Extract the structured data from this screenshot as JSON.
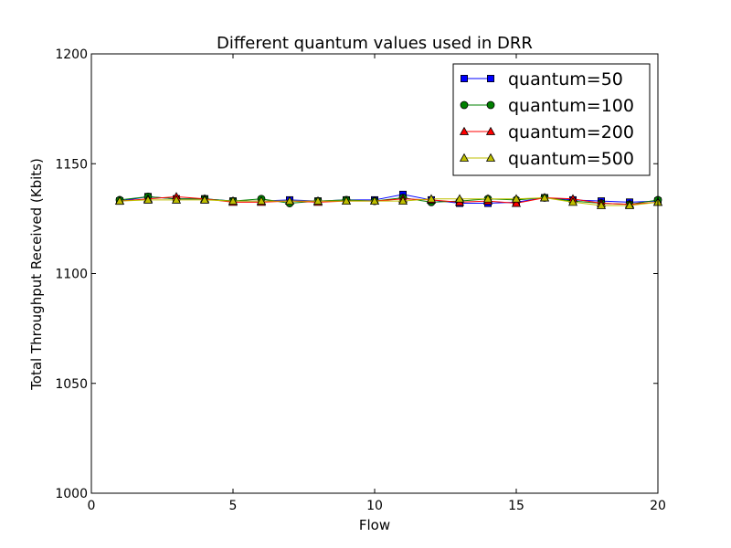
{
  "chart_data": {
    "type": "line",
    "title": "Different quantum values used in DRR",
    "xlabel": "Flow",
    "ylabel": "Total Throughput Received (Kbits)",
    "xlim": [
      0,
      20
    ],
    "ylim": [
      1000,
      1200
    ],
    "xticks": [
      0,
      5,
      10,
      15,
      20
    ],
    "yticks": [
      1000,
      1050,
      1100,
      1150,
      1200
    ],
    "grid": false,
    "legend_position": "top-right",
    "x": [
      1,
      2,
      3,
      4,
      5,
      6,
      7,
      8,
      9,
      10,
      11,
      12,
      13,
      14,
      15,
      16,
      17,
      18,
      19,
      20
    ],
    "series": [
      {
        "name": "quantum=50",
        "color": "#0000ff",
        "marker": "square",
        "values": [
          1133,
          1135,
          1134,
          1134,
          1133,
          1133,
          1133.5,
          1133,
          1133.5,
          1133.5,
          1136,
          1133.5,
          1132,
          1132,
          1132.5,
          1134.5,
          1133.5,
          1133,
          1132.5,
          1133
        ]
      },
      {
        "name": "quantum=100",
        "color": "#008000",
        "marker": "circle",
        "values": [
          1133.5,
          1135,
          1134,
          1134,
          1133,
          1134,
          1132,
          1133,
          1133.5,
          1133,
          1134.5,
          1132.5,
          1133,
          1134,
          1133.5,
          1134.5,
          1133,
          1132,
          1131.5,
          1133.5
        ]
      },
      {
        "name": "quantum=200",
        "color": "#ff0000",
        "marker": "triangle",
        "values": [
          1133,
          1134,
          1135,
          1134,
          1132.5,
          1132.5,
          1133,
          1132.5,
          1133,
          1133,
          1134,
          1133.5,
          1132.5,
          1133,
          1132,
          1134.5,
          1134,
          1132,
          1131.5,
          1132.5
        ]
      },
      {
        "name": "quantum=500",
        "color": "#bfbf00",
        "marker": "triangle",
        "values": [
          1133,
          1133.5,
          1133.5,
          1133.5,
          1133,
          1133,
          1133,
          1133,
          1133,
          1133,
          1133,
          1134,
          1134,
          1134,
          1134,
          1134.5,
          1132.5,
          1131,
          1131,
          1132.5
        ]
      }
    ]
  }
}
